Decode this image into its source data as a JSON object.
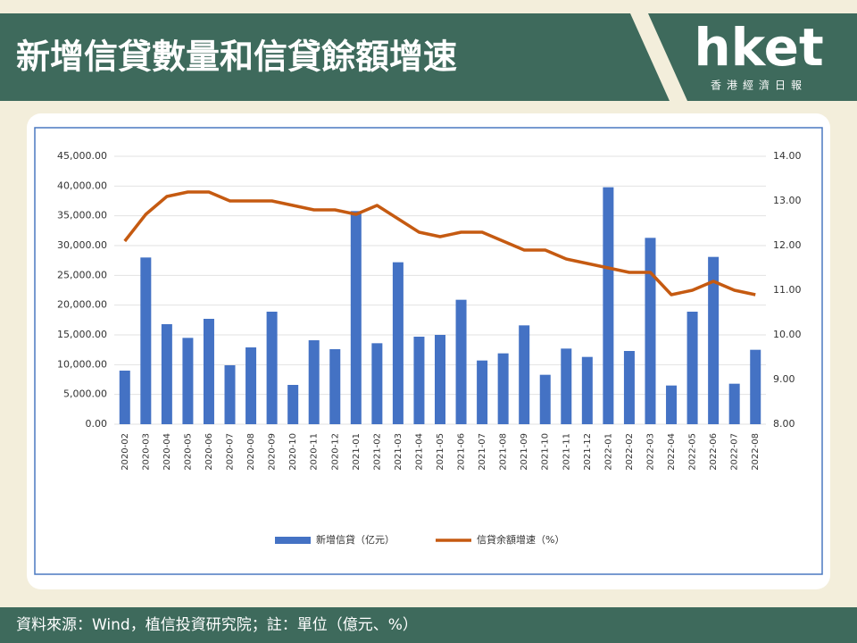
{
  "header": {
    "title": "新增信貸數量和信貸餘額增速"
  },
  "logo": {
    "text": "hket",
    "subtitle": "香港經濟日報"
  },
  "footer": {
    "source": "資料來源：Wind，植信投資研究院；註：單位（億元、%）"
  },
  "chart_data": {
    "type": "bar-line",
    "categories": [
      "2020-02",
      "2020-03",
      "2020-04",
      "2020-05",
      "2020-06",
      "2020-07",
      "2020-08",
      "2020-09",
      "2020-10",
      "2020-11",
      "2020-12",
      "2021-01",
      "2021-02",
      "2021-03",
      "2021-04",
      "2021-05",
      "2021-06",
      "2021-07",
      "2021-08",
      "2021-09",
      "2021-10",
      "2021-11",
      "2021-12",
      "2022-01",
      "2022-02",
      "2022-03",
      "2022-04",
      "2022-05",
      "2022-06",
      "2022-07",
      "2022-08"
    ],
    "series": [
      {
        "name": "新增信貸（亿元）",
        "type": "bar",
        "axis": "y",
        "color": "#4472c4",
        "values": [
          9000,
          28000,
          16800,
          14500,
          17700,
          9900,
          12900,
          18900,
          6600,
          14100,
          12600,
          35800,
          13600,
          27200,
          14700,
          15000,
          20900,
          10700,
          11900,
          16600,
          8300,
          12700,
          11300,
          39800,
          12300,
          31300,
          6500,
          18900,
          28100,
          6800,
          12500
        ]
      },
      {
        "name": "信貸余額增速（%）",
        "type": "line",
        "axis": "y2",
        "color": "#c55a11",
        "values": [
          12.1,
          12.7,
          13.1,
          13.2,
          13.2,
          13.0,
          13.0,
          13.0,
          12.9,
          12.8,
          12.8,
          12.7,
          12.9,
          12.6,
          12.3,
          12.2,
          12.3,
          12.3,
          12.1,
          11.9,
          11.9,
          11.7,
          11.6,
          11.5,
          11.4,
          11.4,
          10.9,
          11.0,
          11.2,
          11.0,
          10.9
        ]
      }
    ],
    "ylim": [
      0,
      45000
    ],
    "yticks": [
      {
        "value": 0,
        "label": "0.00"
      },
      {
        "value": 5000,
        "label": "5,000.00"
      },
      {
        "value": 10000,
        "label": "10,000.00"
      },
      {
        "value": 15000,
        "label": "15,000.00"
      },
      {
        "value": 20000,
        "label": "20,000.00"
      },
      {
        "value": 25000,
        "label": "25,000.00"
      },
      {
        "value": 30000,
        "label": "30,000.00"
      },
      {
        "value": 35000,
        "label": "35,000.00"
      },
      {
        "value": 40000,
        "label": "40,000.00"
      },
      {
        "value": 45000,
        "label": "45,000.00"
      }
    ],
    "y2lim": [
      8,
      14
    ],
    "y2ticks": [
      {
        "value": 8,
        "label": "8.00"
      },
      {
        "value": 9,
        "label": "9.00"
      },
      {
        "value": 10,
        "label": "10.00"
      },
      {
        "value": 11,
        "label": "11.00"
      },
      {
        "value": 12,
        "label": "12.00"
      },
      {
        "value": 13,
        "label": "13.00"
      },
      {
        "value": 14,
        "label": "14.00"
      }
    ],
    "grid": true,
    "legend": "bottom"
  }
}
